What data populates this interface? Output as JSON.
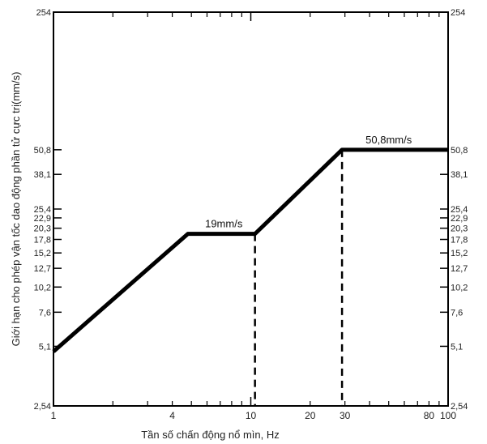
{
  "chart_data": {
    "type": "line",
    "xscale": "log",
    "yscale": "log",
    "xlim": [
      1,
      100
    ],
    "ylim": [
      2.54,
      254
    ],
    "xlabel": "Tần số chấn động nổ mìn, Hz",
    "ylabel": "Giới hạn cho phép vận tốc dao động phần tử cực trị(mm/s)",
    "x_ticks": [
      {
        "value": 1,
        "label": "1"
      },
      {
        "value": 4,
        "label": "4"
      },
      {
        "value": 10,
        "label": "10"
      },
      {
        "value": 20,
        "label": "20"
      },
      {
        "value": 30,
        "label": "30"
      },
      {
        "value": 80,
        "label": "80"
      },
      {
        "value": 100,
        "label": "100"
      }
    ],
    "y_ticks": [
      {
        "value": 2.54,
        "label": "2,54"
      },
      {
        "value": 5.1,
        "label": "5,1"
      },
      {
        "value": 7.6,
        "label": "7,6"
      },
      {
        "value": 10.2,
        "label": "10,2"
      },
      {
        "value": 12.7,
        "label": "12,7"
      },
      {
        "value": 15.2,
        "label": "15,2"
      },
      {
        "value": 17.8,
        "label": "17,8"
      },
      {
        "value": 20.3,
        "label": "20,3"
      },
      {
        "value": 22.9,
        "label": "22,9"
      },
      {
        "value": 25.4,
        "label": "25,4"
      },
      {
        "value": 38.1,
        "label": "38,1"
      },
      {
        "value": 50.8,
        "label": "50,8"
      },
      {
        "value": 254,
        "label": "254"
      }
    ],
    "series": [
      {
        "x": [
          1,
          4.8,
          10.5,
          29,
          100
        ],
        "y": [
          4.8,
          19,
          19,
          50.8,
          50.8
        ]
      }
    ],
    "reference_lines": [
      {
        "x": 10.5,
        "y_top": 19
      },
      {
        "x": 29,
        "y_top": 50.8
      }
    ],
    "annotations": [
      {
        "text": "19mm/s",
        "x": 7.3,
        "y": 19
      },
      {
        "text": "50,8mm/s",
        "x": 50,
        "y": 50.8
      }
    ],
    "grid": false,
    "colors": {
      "line": "#000000",
      "frame": "#000000",
      "text": "#222222"
    }
  }
}
